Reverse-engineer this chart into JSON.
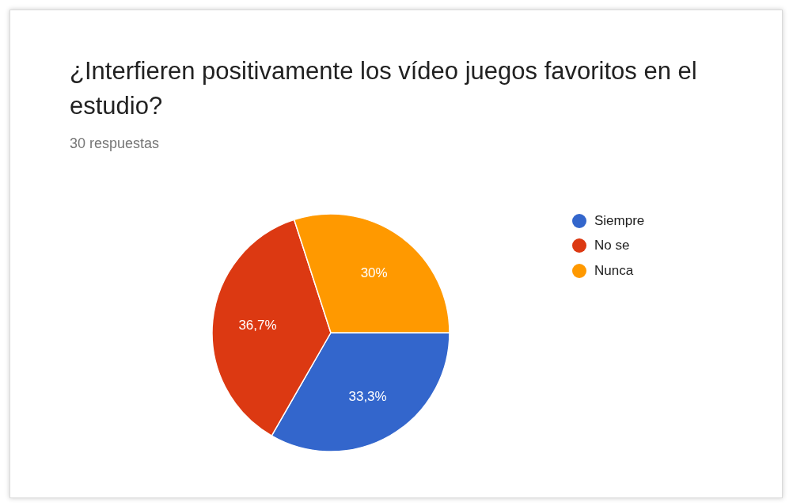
{
  "chart_data": {
    "type": "pie",
    "title": "¿Interfieren positivamente los vídeo juegos favoritos en el estudio?",
    "subtitle": "30 respuestas",
    "categories": [
      "Siempre",
      "No se",
      "Nunca"
    ],
    "values": [
      33.3,
      36.7,
      30
    ],
    "colors": [
      "#3366cc",
      "#dc3912",
      "#ff9900"
    ],
    "value_labels": [
      "33,3%",
      "36,7%",
      "30%"
    ],
    "legend": "right"
  }
}
